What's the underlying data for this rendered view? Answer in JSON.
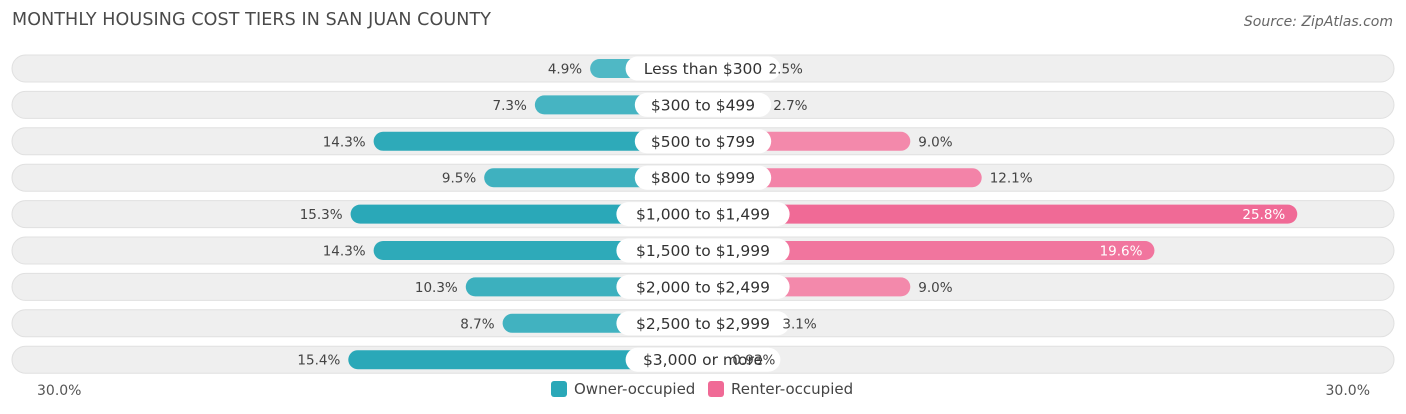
{
  "chart_data": {
    "type": "bar",
    "orientation": "diverging-horizontal",
    "title": "MONTHLY HOUSING COST TIERS IN SAN JUAN COUNTY",
    "source": "Source: ZipAtlas.com",
    "categories": [
      "Less than $300",
      "$300 to $499",
      "$500 to $799",
      "$800 to $999",
      "$1,000 to $1,499",
      "$1,500 to $1,999",
      "$2,000 to $2,499",
      "$2,500 to $2,999",
      "$3,000 or more"
    ],
    "series": [
      {
        "name": "Owner-occupied",
        "side": "left",
        "color": "#2aa8b8",
        "color_light": "#7dcbd5",
        "values": [
          4.9,
          7.3,
          14.3,
          9.5,
          15.3,
          14.3,
          10.3,
          8.7,
          15.4
        ],
        "labels": [
          "4.9%",
          "7.3%",
          "14.3%",
          "9.5%",
          "15.3%",
          "14.3%",
          "10.3%",
          "8.7%",
          "15.4%"
        ]
      },
      {
        "name": "Renter-occupied",
        "side": "right",
        "color": "#f06a96",
        "color_light": "#f7a9c2",
        "values": [
          2.5,
          2.7,
          9.0,
          12.1,
          25.8,
          19.6,
          9.0,
          3.1,
          0.93
        ],
        "labels": [
          "2.5%",
          "2.7%",
          "9.0%",
          "12.1%",
          "25.8%",
          "19.6%",
          "9.0%",
          "3.1%",
          "0.93%"
        ]
      }
    ],
    "xlim": [
      -30,
      30
    ],
    "axis_labels": {
      "left": "30.0%",
      "right": "30.0%"
    },
    "legend_position": "bottom-center"
  }
}
